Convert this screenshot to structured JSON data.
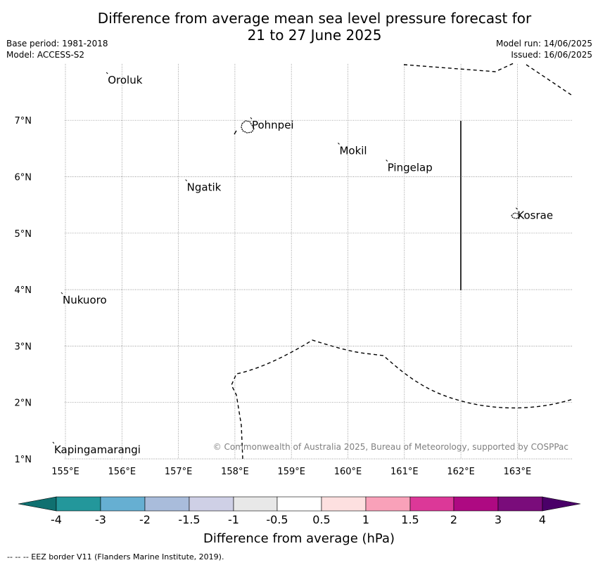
{
  "title": {
    "line1": "Difference from average mean sea level pressure forecast for",
    "line2": "21 to 27 June 2025"
  },
  "meta": {
    "base_period": "Base period: 1981-2018",
    "model": "Model: ACCESS-S2",
    "model_run": "Model run: 14/06/2025",
    "issued": "Issued: 16/06/2025"
  },
  "map": {
    "lon_labels": [
      "155°E",
      "156°E",
      "157°E",
      "158°E",
      "159°E",
      "160°E",
      "161°E",
      "162°E",
      "163°E"
    ],
    "lat_labels": [
      "1°N",
      "2°N",
      "3°N",
      "4°N",
      "5°N",
      "6°N",
      "7°N"
    ],
    "places": [
      {
        "name": "Oroluk",
        "lon": 155.75,
        "lat": 7.65
      },
      {
        "name": "Pohnpei",
        "lon": 158.3,
        "lat": 6.85
      },
      {
        "name": "Mokil",
        "lon": 159.85,
        "lat": 6.4
      },
      {
        "name": "Pingelap",
        "lon": 160.7,
        "lat": 6.1
      },
      {
        "name": "Ngatik",
        "lon": 157.15,
        "lat": 5.75
      },
      {
        "name": "Kosrae",
        "lon": 163.0,
        "lat": 5.25
      },
      {
        "name": "Nukuoro",
        "lon": 154.95,
        "lat": 3.75
      },
      {
        "name": "Kapingamarangi",
        "lon": 154.8,
        "lat": 1.1
      }
    ],
    "copyright": "© Commonwealth of Australia 2025, Bureau of Meteorology, supported by COSPPac"
  },
  "colorbar": {
    "tick_labels": [
      "-4",
      "-3",
      "-2",
      "-1.5",
      "-1",
      "-0.5",
      "0.5",
      "1",
      "1.5",
      "2",
      "3",
      "4"
    ],
    "colors": [
      "#0f7070",
      "#23979b",
      "#66afd2",
      "#a9bcdb",
      "#cfd0e6",
      "#e8e8e8",
      "#ffffff",
      "#fde0e0",
      "#f9a1b9",
      "#dc3898",
      "#ae0982",
      "#7a0c7b",
      "#4a0068"
    ],
    "title": "Difference from average (hPa)"
  },
  "footer": "--  --  -- EEZ border V11 (Flanders Marine Institute, 2019)."
}
